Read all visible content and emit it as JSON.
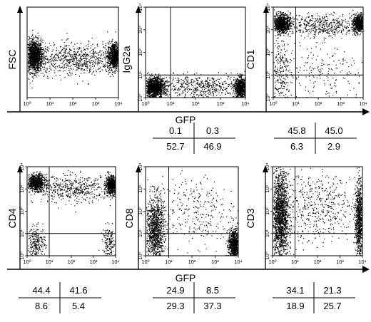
{
  "figure": {
    "xaxis_label_top": "GFP",
    "xaxis_label_bottom": "GFP"
  },
  "chart_data": [
    {
      "type": "scatter",
      "ylabel": "FSC",
      "xlabel": "GFP",
      "xscale": "log",
      "yscale": "log",
      "xlim": [
        1,
        10000
      ],
      "ylim": [
        1,
        10000
      ],
      "xticks": [
        "10⁰",
        "10¹",
        "10²",
        "10³",
        "10⁴"
      ],
      "yticks": [],
      "quadrant": null,
      "quadrant_percents": null,
      "clusters": [
        {
          "x_log": 0.3,
          "y_log": 1.85,
          "sx": 0.18,
          "sy": 0.35,
          "n": 1400
        },
        {
          "x_log": 3.8,
          "y_log": 1.85,
          "sx": 0.15,
          "sy": 0.3,
          "n": 900
        },
        {
          "x_log": 2.1,
          "y_log": 1.7,
          "sx": 0.9,
          "sy": 0.35,
          "n": 700
        }
      ]
    },
    {
      "type": "scatter",
      "ylabel": "IgG2a",
      "xlabel": "GFP",
      "xscale": "log",
      "yscale": "log",
      "xlim": [
        1,
        10000
      ],
      "ylim": [
        1,
        10000
      ],
      "xticks": [
        "10⁰",
        "10¹",
        "10²",
        "10³",
        "10⁴"
      ],
      "yticks": [
        "10⁰",
        "10¹",
        "10²",
        "10³",
        "10⁴"
      ],
      "quadrant": {
        "x": 10,
        "y": 10
      },
      "quadrant_percents": {
        "upper_left": "0.1",
        "upper_right": "0.3",
        "lower_left": "52.7",
        "lower_right": "46.9"
      },
      "clusters": [
        {
          "x_log": 0.35,
          "y_log": 0.45,
          "sx": 0.2,
          "sy": 0.22,
          "n": 1300
        },
        {
          "x_log": 3.8,
          "y_log": 0.45,
          "sx": 0.13,
          "sy": 0.22,
          "n": 800
        },
        {
          "x_log": 2.1,
          "y_log": 0.5,
          "sx": 0.9,
          "sy": 0.25,
          "n": 500
        }
      ]
    },
    {
      "type": "scatter",
      "ylabel": "CD1",
      "xlabel": "GFP",
      "xscale": "log",
      "yscale": "log",
      "xlim": [
        1,
        10000
      ],
      "ylim": [
        1,
        10000
      ],
      "xticks": [
        "10⁰",
        "10¹",
        "10²",
        "10³",
        "10⁴"
      ],
      "yticks": [
        "10⁰",
        "10¹",
        "10²",
        "10³",
        "10⁴"
      ],
      "quadrant": {
        "x": 10,
        "y": 10
      },
      "quadrant_percents": {
        "upper_left": "45.8",
        "upper_right": "45.0",
        "lower_left": "6.3",
        "lower_right": "2.9"
      },
      "clusters": [
        {
          "x_log": 0.35,
          "y_log": 3.3,
          "sx": 0.2,
          "sy": 0.2,
          "n": 900
        },
        {
          "x_log": 3.8,
          "y_log": 3.3,
          "sx": 0.13,
          "sy": 0.2,
          "n": 700
        },
        {
          "x_log": 2.1,
          "y_log": 3.2,
          "sx": 0.9,
          "sy": 0.25,
          "n": 500
        },
        {
          "x_log": 0.3,
          "y_log": 1.2,
          "sx": 0.2,
          "sy": 0.9,
          "n": 250
        },
        {
          "x_log": 2.2,
          "y_log": 1.0,
          "sx": 1.0,
          "sy": 0.7,
          "n": 200
        }
      ]
    },
    {
      "type": "scatter",
      "ylabel": "CD4",
      "xlabel": "GFP",
      "xscale": "log",
      "yscale": "log",
      "xlim": [
        1,
        10000
      ],
      "ylim": [
        1,
        10000
      ],
      "xticks": [
        "10⁰",
        "10¹",
        "10²",
        "10³",
        "10⁴"
      ],
      "yticks": [
        "10⁰",
        "10¹",
        "10²",
        "10³",
        "10⁴"
      ],
      "quadrant": {
        "x": 10,
        "y": 10
      },
      "quadrant_percents": {
        "upper_left": "44.4",
        "upper_right": "41.6",
        "lower_left": "8.6",
        "lower_right": "5.4"
      },
      "clusters": [
        {
          "x_log": 0.4,
          "y_log": 3.3,
          "sx": 0.2,
          "sy": 0.18,
          "n": 800
        },
        {
          "x_log": 3.8,
          "y_log": 3.2,
          "sx": 0.13,
          "sy": 0.2,
          "n": 700
        },
        {
          "x_log": 2.1,
          "y_log": 3.0,
          "sx": 0.9,
          "sy": 0.3,
          "n": 500
        },
        {
          "x_log": 0.4,
          "y_log": 0.6,
          "sx": 0.2,
          "sy": 0.35,
          "n": 250
        },
        {
          "x_log": 3.7,
          "y_log": 0.6,
          "sx": 0.15,
          "sy": 0.35,
          "n": 150
        }
      ]
    },
    {
      "type": "scatter",
      "ylabel": "CD8",
      "xlabel": "GFP",
      "xscale": "log",
      "yscale": "log",
      "xlim": [
        1,
        10000
      ],
      "ylim": [
        1,
        10000
      ],
      "xticks": [
        "10⁰",
        "10¹",
        "10²",
        "10³",
        "10⁴"
      ],
      "yticks": [
        "10⁰",
        "10¹",
        "10²",
        "10³",
        "10⁴"
      ],
      "quadrant": {
        "x": 10,
        "y": 10
      },
      "quadrant_percents": {
        "upper_left": "24.9",
        "upper_right": "8.5",
        "lower_left": "29.3",
        "lower_right": "37.3"
      },
      "clusters": [
        {
          "x_log": 0.4,
          "y_log": 1.2,
          "sx": 0.2,
          "sy": 0.75,
          "n": 1100
        },
        {
          "x_log": 3.8,
          "y_log": 0.5,
          "sx": 0.12,
          "sy": 0.35,
          "n": 800
        },
        {
          "x_log": 2.1,
          "y_log": 2.0,
          "sx": 0.9,
          "sy": 0.8,
          "n": 300
        }
      ]
    },
    {
      "type": "scatter",
      "ylabel": "CD3",
      "xlabel": "GFP",
      "xscale": "log",
      "yscale": "log",
      "xlim": [
        1,
        10000
      ],
      "ylim": [
        1,
        10000
      ],
      "xticks": [
        "10⁰",
        "10¹",
        "10²",
        "10³",
        "10⁴"
      ],
      "yticks": [
        "10⁰",
        "10¹",
        "10²",
        "10³",
        "10⁴"
      ],
      "quadrant": {
        "x": 10,
        "y": 10
      },
      "quadrant_percents": {
        "upper_left": "34.1",
        "upper_right": "21.3",
        "lower_left": "18.9",
        "lower_right": "25.7"
      },
      "clusters": [
        {
          "x_log": 0.35,
          "y_log": 1.8,
          "sx": 0.18,
          "sy": 1.0,
          "n": 1600
        },
        {
          "x_log": 3.85,
          "y_log": 1.6,
          "sx": 0.1,
          "sy": 0.9,
          "n": 900
        },
        {
          "x_log": 2.1,
          "y_log": 2.2,
          "sx": 0.9,
          "sy": 0.8,
          "n": 500
        }
      ]
    }
  ]
}
